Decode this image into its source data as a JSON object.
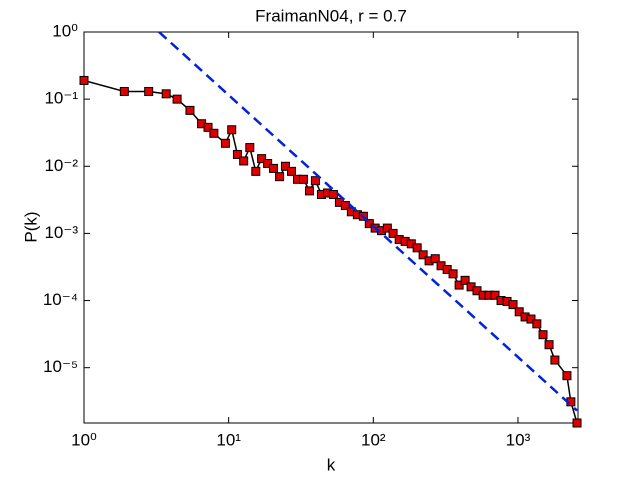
{
  "chart_data": {
    "type": "line",
    "title": "FraimanN04, r = 0.7",
    "xlabel": "k",
    "ylabel": "P(k)",
    "xscale": "log",
    "yscale": "log",
    "xlim": [
      1,
      2600
    ],
    "ylim": [
      1.5e-06,
      1
    ],
    "xticks": [
      {
        "value": 1,
        "label": "10⁰"
      },
      {
        "value": 10,
        "label": "10¹"
      },
      {
        "value": 100,
        "label": "10²"
      },
      {
        "value": 1000,
        "label": "10³"
      }
    ],
    "yticks": [
      {
        "value": 1e-05,
        "label": "10⁻⁵"
      },
      {
        "value": 0.0001,
        "label": "10⁻⁴"
      },
      {
        "value": 0.001,
        "label": "10⁻³"
      },
      {
        "value": 0.01,
        "label": "10⁻²"
      },
      {
        "value": 0.1,
        "label": "10⁻¹"
      },
      {
        "value": 1,
        "label": "10⁰"
      }
    ],
    "series": [
      {
        "color": "#000000",
        "marker_color": "#dd0000",
        "marker": "square",
        "x": [
          1,
          1.9,
          2.8,
          3.7,
          4.4,
          5.4,
          6.5,
          7.2,
          7.9,
          9.5,
          10.5,
          11.5,
          12.7,
          14,
          15.4,
          16.9,
          18.6,
          20.4,
          22.5,
          24.7,
          27.2,
          29.9,
          32.9,
          36.2,
          39.8,
          43.8,
          48.2,
          53,
          58.3,
          64.1,
          70.5,
          77.6,
          85.4,
          93.8,
          103,
          114,
          125,
          137,
          151,
          166,
          183,
          201,
          221,
          243,
          268,
          294,
          324,
          356,
          392,
          431,
          474,
          521,
          574,
          631,
          694,
          764,
          840,
          924,
          1020,
          1120,
          1230,
          1350,
          1490,
          1640,
          1800,
          2180,
          2320,
          2560
        ],
        "values": [
          0.19,
          0.13,
          0.13,
          0.12,
          0.1,
          0.068,
          0.043,
          0.038,
          0.031,
          0.022,
          0.035,
          0.015,
          0.012,
          0.019,
          0.0084,
          0.013,
          0.011,
          0.0093,
          0.007,
          0.01,
          0.0084,
          0.0064,
          0.0064,
          0.0043,
          0.0061,
          0.0038,
          0.004,
          0.0038,
          0.0029,
          0.0026,
          0.0021,
          0.0019,
          0.0018,
          0.0014,
          0.0012,
          0.0011,
          0.0012,
          0.001,
          0.00081,
          0.00076,
          0.0007,
          0.00061,
          0.00048,
          0.00039,
          0.00042,
          0.00033,
          0.00029,
          0.00025,
          0.00017,
          0.0002,
          0.00016,
          0.00014,
          0.00012,
          0.00012,
          0.00012,
          0.0001,
          9.7e-05,
          8.7e-05,
          6.8e-05,
          5.7e-05,
          5.3e-05,
          4.5e-05,
          3.1e-05,
          2.2e-05,
          1.3e-05,
          7.6e-06,
          3.1e-06,
          1.5e-06
        ]
      },
      {
        "color": "#0022dd",
        "dash": true,
        "x": [
          3.3,
          2560
        ],
        "values": [
          1,
          2.3e-06
        ]
      }
    ]
  }
}
